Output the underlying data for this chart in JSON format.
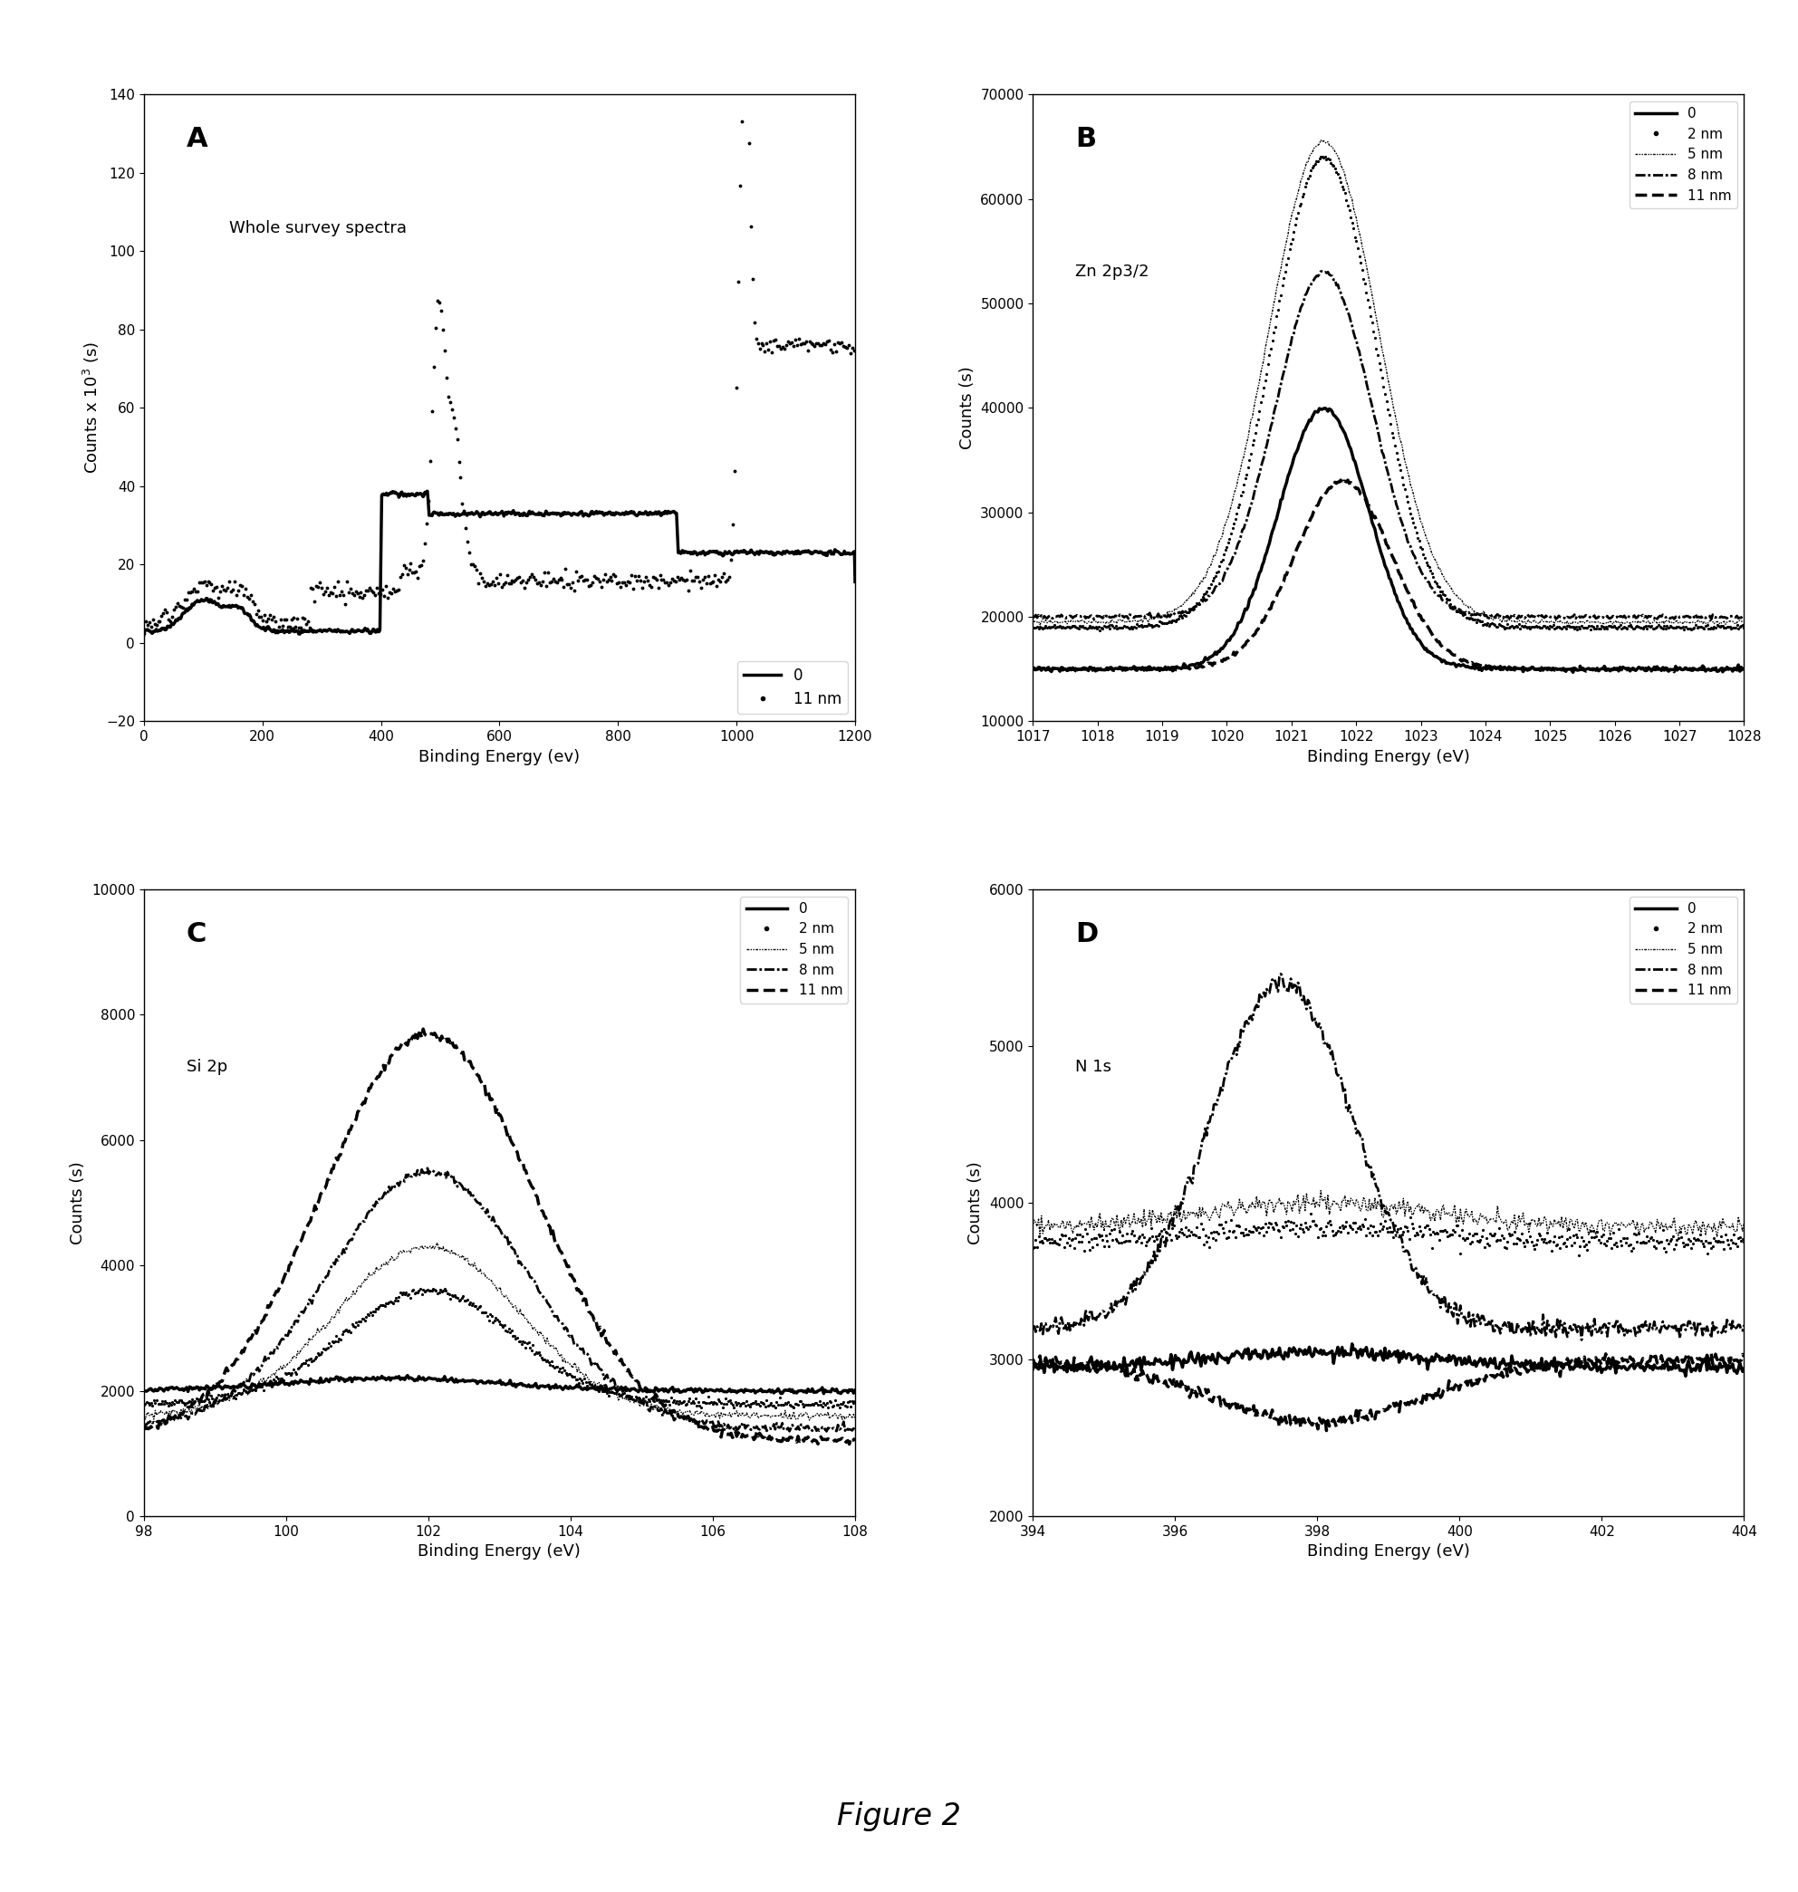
{
  "figure_title": "Figure 2",
  "panels": {
    "A": {
      "title": "Whole survey spectra",
      "label": "A",
      "xlabel": "Binding Energy (ev)",
      "ylabel": "Counts x 10^3 (s)",
      "xlim": [
        0,
        1200
      ],
      "ylim": [
        -20,
        140
      ],
      "yticks": [
        -20,
        0,
        20,
        40,
        60,
        80,
        100,
        120,
        140
      ],
      "xticks": [
        0,
        200,
        400,
        600,
        800,
        1000,
        1200
      ],
      "legend_labels": [
        "0",
        "11 nm"
      ]
    },
    "B": {
      "title": "Zn 2p3/2",
      "label": "B",
      "xlabel": "Binding Energy (eV)",
      "ylabel": "Counts (s)",
      "xlim": [
        1017,
        1028
      ],
      "ylim": [
        10000,
        70000
      ],
      "yticks": [
        10000,
        20000,
        30000,
        40000,
        50000,
        60000,
        70000
      ],
      "xticks": [
        1017,
        1018,
        1019,
        1020,
        1021,
        1022,
        1023,
        1024,
        1025,
        1026,
        1027,
        1028
      ],
      "legend_labels": [
        "0",
        "2 nm",
        "5 nm",
        "8 nm",
        "11 nm"
      ]
    },
    "C": {
      "title": "Si 2p",
      "label": "C",
      "xlabel": "Binding Energy (eV)",
      "ylabel": "Counts (s)",
      "xlim": [
        98,
        108
      ],
      "ylim": [
        0,
        10000
      ],
      "yticks": [
        0,
        2000,
        4000,
        6000,
        8000,
        10000
      ],
      "xticks": [
        98,
        100,
        102,
        104,
        106,
        108
      ],
      "legend_labels": [
        "0",
        "2 nm",
        "5 nm",
        "8 nm",
        "11 nm"
      ]
    },
    "D": {
      "title": "N 1s",
      "label": "D",
      "xlabel": "Binding Energy (eV)",
      "ylabel": "Counts (s)",
      "xlim": [
        394,
        404
      ],
      "ylim": [
        2000,
        6000
      ],
      "yticks": [
        2000,
        3000,
        4000,
        5000,
        6000
      ],
      "xticks": [
        394,
        396,
        398,
        400,
        402,
        404
      ],
      "legend_labels": [
        "0",
        "2 nm",
        "5 nm",
        "8 nm",
        "11 nm"
      ]
    }
  }
}
